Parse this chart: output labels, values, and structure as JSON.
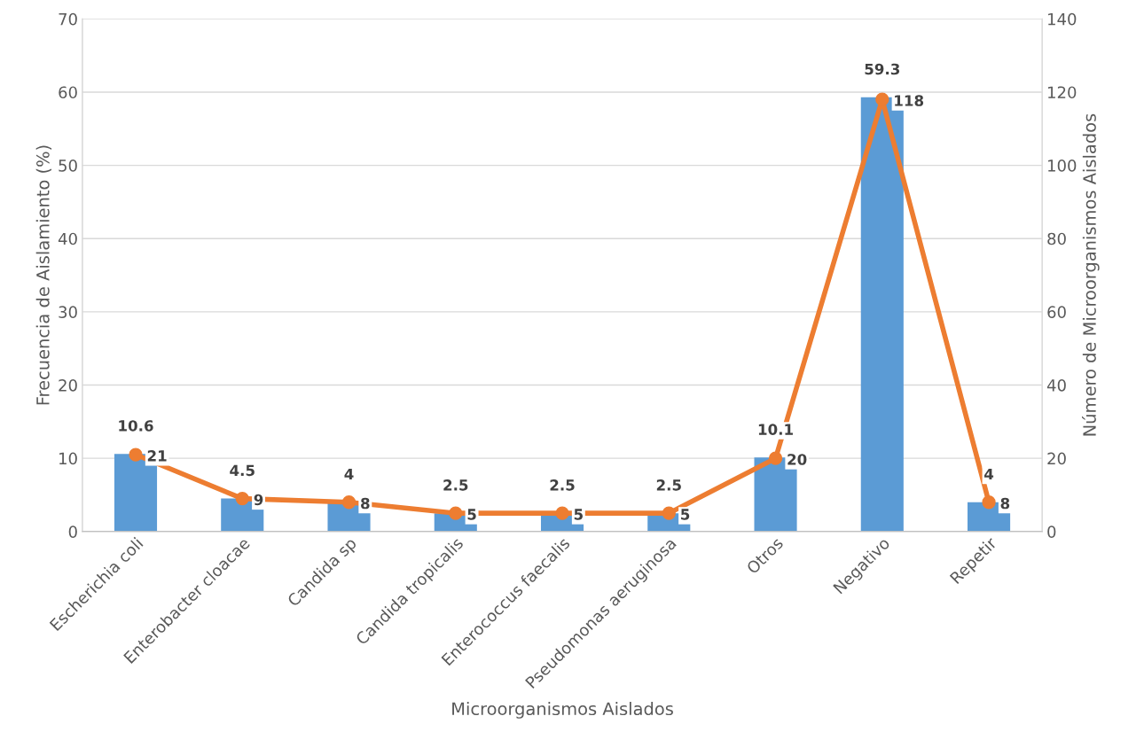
{
  "chart_data": {
    "type": "bar",
    "xlabel": "Microorganismos Aislados",
    "ylabel": "Frecuencia de Aislamiento (%)",
    "y2label": "Número de Microorganismos Aislados",
    "categories": [
      "Escherichia coli",
      "Enterobacter cloacae",
      "Candida sp",
      "Candida tropicalis",
      "Enterococcus faecalis",
      "Pseudomonas aeruginosa",
      "Otros",
      "Negativo",
      "Repetir"
    ],
    "series": [
      {
        "color": "#5b9bd5",
        "values": [
          10.6,
          4.5,
          4,
          2.5,
          2.5,
          2.5,
          10.1,
          59.3,
          4
        ]
      },
      {
        "type": "line",
        "axis": "y2",
        "color": "#ed7d31",
        "marker": "circle",
        "values": [
          21,
          9,
          8,
          5,
          5,
          5,
          20,
          118,
          8
        ]
      }
    ],
    "ylim": [
      0,
      70
    ],
    "yticks": [
      0,
      10,
      20,
      30,
      40,
      50,
      60,
      70
    ],
    "y2lim": [
      0,
      140
    ],
    "y2ticks": [
      0,
      20,
      40,
      60,
      80,
      100,
      120,
      140
    ],
    "grid": "y",
    "data_labels": true,
    "legend": false
  }
}
